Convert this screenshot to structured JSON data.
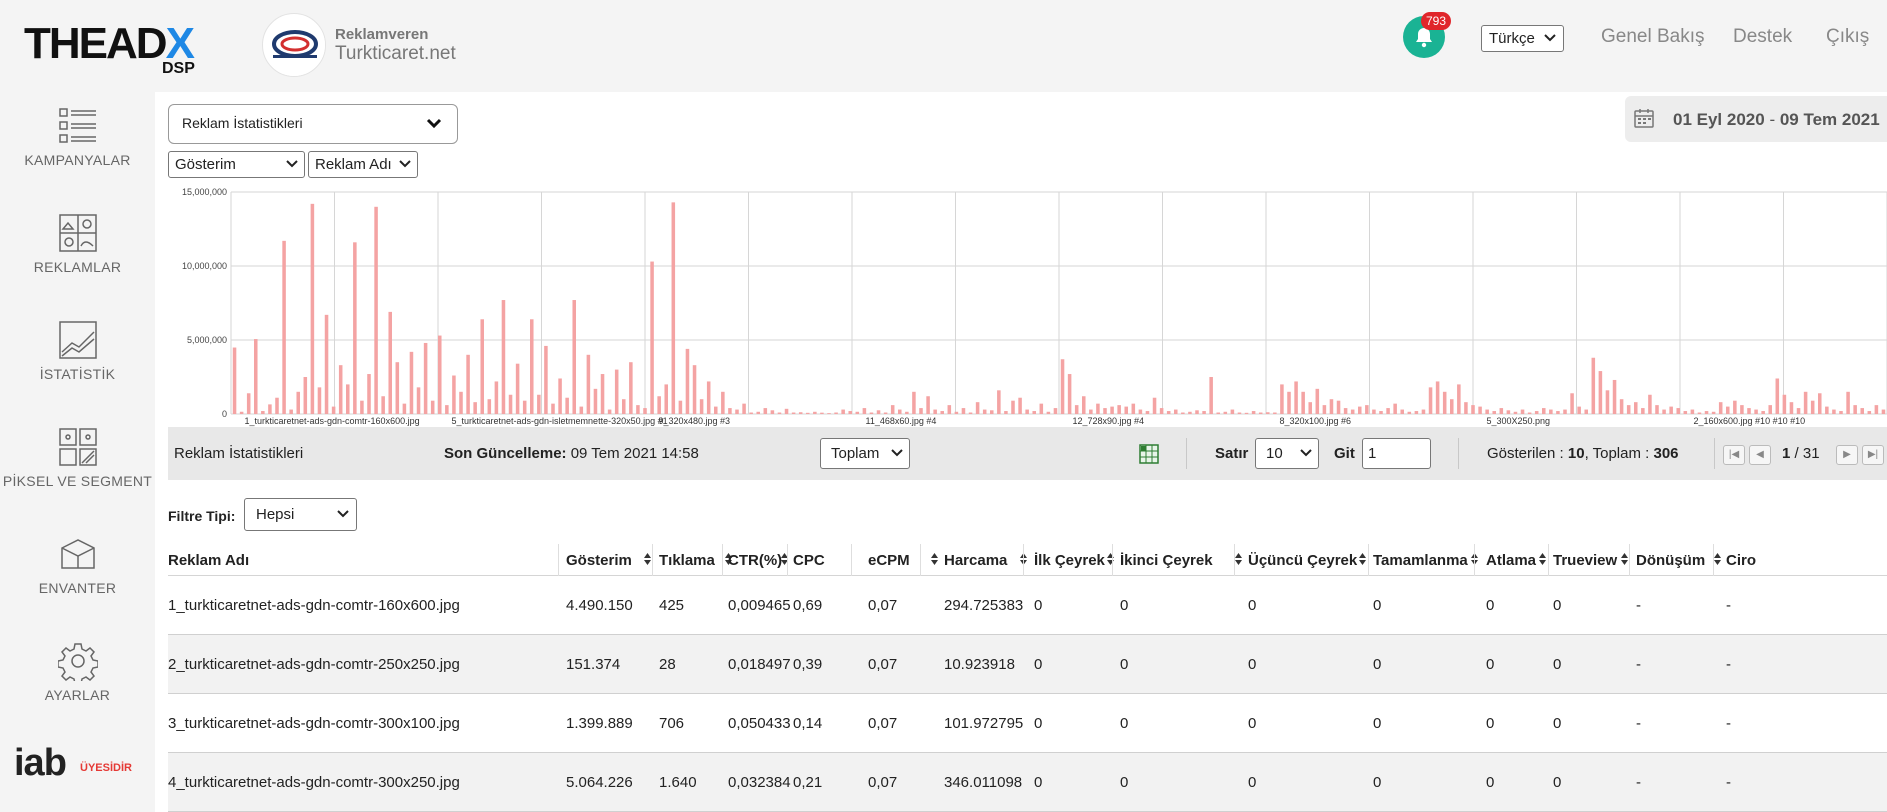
{
  "header": {
    "logo_text": "THEADX",
    "logo_sub": "DSP",
    "advertiser_label": "Reklamveren",
    "advertiser_name": "Turkticaret.net",
    "notification_count": "793",
    "language": "Türkçe",
    "nav": [
      "Genel Bakış",
      "Destek",
      "Çıkış"
    ]
  },
  "sidebar": {
    "items": [
      {
        "label": "KAMPANYALAR",
        "icon": "campaigns-icon"
      },
      {
        "label": "REKLAMLAR",
        "icon": "ads-icon"
      },
      {
        "label": "İSTATİSTİK",
        "icon": "statistics-icon"
      },
      {
        "label": "PİKSEL VE SEGMENT",
        "icon": "pixel-segment-icon"
      },
      {
        "label": "ENVANTER",
        "icon": "inventory-icon"
      },
      {
        "label": "AYARLAR",
        "icon": "gear-icon"
      }
    ],
    "iab_text": "iab",
    "iab_badge": "ÜYESİDİR"
  },
  "controls": {
    "report_type": "Reklam İstatistikleri",
    "metric": "Gösterim",
    "dimension": "Reklam Adı",
    "date_start": "01 Eyl 2020",
    "date_sep": "-",
    "date_end": "09 Tem 2021"
  },
  "chart_data": {
    "type": "bar",
    "ylim": [
      0,
      15000000
    ],
    "yticks": [
      "15,000,000",
      "10,000,000",
      "5,000,000",
      "0"
    ],
    "x_tick_labels": [
      "1_turkticaretnet-ads-gdn-comtr-160x600.jpg",
      "5_turkticaretnet-ads-gdn-isletmemnette-320x50.jpg #1",
      "9_320x480.jpg #3",
      "11_468x60.jpg #4",
      "12_728x90.jpg #4",
      "8_320x100.jpg #6",
      "5_300X250.png",
      "2_160x600.jpg #10 #10 #10"
    ],
    "values": [
      4490150,
      151374,
      1399889,
      5064226,
      200000,
      650000,
      1100000,
      11700000,
      300000,
      1500000,
      2500000,
      14200000,
      1800000,
      6700000,
      500000,
      3300000,
      2000000,
      11600000,
      900000,
      2700000,
      14000000,
      1200000,
      6900000,
      3500000,
      700000,
      4200000,
      1800000,
      4800000,
      900000,
      5300000,
      600000,
      2600000,
      1500000,
      4000000,
      800000,
      6400000,
      1000000,
      2200000,
      7700000,
      1300000,
      3400000,
      900000,
      6400000,
      1300000,
      4600000,
      700000,
      2400000,
      1100000,
      7700000,
      500000,
      4000000,
      1700000,
      2700000,
      300000,
      3000000,
      1000000,
      3500000,
      600000,
      400000,
      10300000,
      1200000,
      2000000,
      14300000,
      900000,
      4400000,
      3300000,
      1000000,
      2200000,
      500000,
      1500000,
      400000,
      300000,
      700000,
      100000,
      150000,
      400000,
      250000,
      100000,
      350000,
      100000,
      120000,
      80000,
      150000,
      90000,
      60000,
      100000,
      300000,
      200000,
      150000,
      400000,
      100000,
      250000,
      100000,
      600000,
      300000,
      150000,
      1500000,
      400000,
      1200000,
      300000,
      200000,
      600000,
      150000,
      400000,
      100000,
      800000,
      300000,
      250000,
      1600000,
      200000,
      900000,
      1100000,
      300000,
      200000,
      700000,
      150000,
      400000,
      3700000,
      2700000,
      600000,
      1200000,
      300000,
      700000,
      400000,
      500000,
      600000,
      500000,
      700000,
      300000,
      200000,
      1100000,
      400000,
      200000,
      300000,
      100000,
      150000,
      250000,
      200000,
      2500000,
      100000,
      150000,
      300000,
      100000,
      80000,
      200000,
      100000,
      120000,
      100000,
      2000000,
      1500000,
      2200000,
      1500000,
      800000,
      1700000,
      600000,
      1000000,
      900000,
      400000,
      300000,
      500000,
      600000,
      300000,
      200000,
      400000,
      700000,
      300000,
      150000,
      200000,
      300000,
      1800000,
      2200000,
      1500000,
      1000000,
      2000000,
      800000,
      600000,
      500000,
      300000,
      200000,
      400000,
      250000,
      150000,
      300000,
      100000,
      200000,
      400000,
      300000,
      200000,
      300000,
      1400000,
      500000,
      300000,
      3800000,
      2900000,
      1600000,
      2300000,
      1000000,
      600000,
      800000,
      400000,
      1300000,
      600000,
      300000,
      500000,
      400000,
      200000,
      300000,
      100000,
      200000,
      150000,
      800000,
      500000,
      900000,
      600000,
      400000,
      300000,
      200000,
      600000,
      2400000,
      1300000,
      800000,
      400000,
      1500000,
      900000,
      1400000,
      500000,
      300000,
      200000,
      1500000,
      600000,
      400000,
      200000,
      600000,
      300000
    ]
  },
  "toolbar": {
    "title": "Reklam İstatistikleri",
    "updated_label": "Son Güncelleme:",
    "updated_value": "09 Tem 2021 14:58",
    "aggregate": "Toplam",
    "excel_icon": "excel-export-icon",
    "rows_label": "Satır",
    "rows_value": "10",
    "goto_label": "Git",
    "goto_value": "1",
    "shown_label": "Gösterilen :",
    "shown_value": "10",
    "total_label": ", Toplam :",
    "total_value": "306",
    "page_current": "1",
    "page_total": "/ 31"
  },
  "filter": {
    "label": "Filtre Tipi:",
    "value": "Hepsi"
  },
  "table": {
    "columns": [
      "Reklam Adı",
      "Gösterim",
      "Tıklama",
      "CTR(%)",
      "CPC",
      "eCPM",
      "Harcama",
      "İlk Çeyrek",
      "İkinci Çeyrek",
      "Üçüncü Çeyrek",
      "Tamamlanma",
      "Atlama",
      "Trueview",
      "Dönüşüm",
      "Ciro"
    ],
    "rows": [
      [
        "1_turkticaretnet-ads-gdn-comtr-160x600.jpg",
        "4.490.150",
        "425",
        "0,009465",
        "0,69",
        "0,07",
        "294.725383",
        "0",
        "0",
        "0",
        "0",
        "0",
        "0",
        "-",
        "-"
      ],
      [
        "2_turkticaretnet-ads-gdn-comtr-250x250.jpg",
        "151.374",
        "28",
        "0,018497",
        "0,39",
        "0,07",
        "10.923918",
        "0",
        "0",
        "0",
        "0",
        "0",
        "0",
        "-",
        "-"
      ],
      [
        "3_turkticaretnet-ads-gdn-comtr-300x100.jpg",
        "1.399.889",
        "706",
        "0,050433",
        "0,14",
        "0,07",
        "101.972795",
        "0",
        "0",
        "0",
        "0",
        "0",
        "0",
        "-",
        "-"
      ],
      [
        "4_turkticaretnet-ads-gdn-comtr-300x250.jpg",
        "5.064.226",
        "1.640",
        "0,032384",
        "0,21",
        "0,07",
        "346.011098",
        "0",
        "0",
        "0",
        "0",
        "0",
        "0",
        "-",
        "-"
      ]
    ]
  },
  "colors": {
    "accent": "#1ab394",
    "bar": "#f4a3a3",
    "badge": "#e0262b"
  }
}
